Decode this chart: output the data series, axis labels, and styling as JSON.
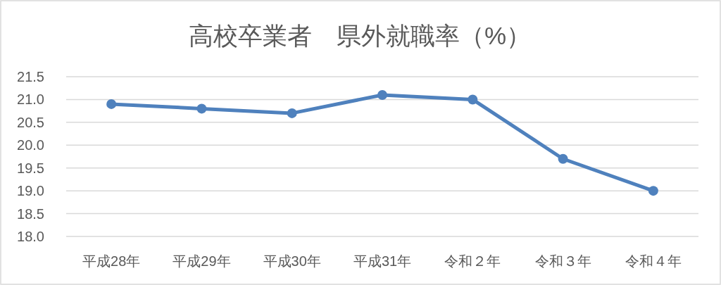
{
  "chart_data": {
    "type": "line",
    "title": "高校卒業者　県外就職率（%）",
    "categories": [
      "平成28年",
      "平成29年",
      "平成30年",
      "平成31年",
      "令和２年",
      "令和３年",
      "令和４年"
    ],
    "series": [
      {
        "color": "#4f81bd",
        "values": [
          20.9,
          20.8,
          20.7,
          21.1,
          21.0,
          19.7,
          19.0
        ]
      }
    ],
    "ylim": [
      18,
      21.5
    ],
    "yticks": [
      {
        "value": 18,
        "label": "18.0"
      },
      18.5,
      {
        "value": 19,
        "label": "19.0"
      },
      19.5,
      {
        "value": 20,
        "label": "20.0"
      },
      20.5,
      {
        "value": 21,
        "label": "21.0"
      },
      21.5
    ],
    "grid": "y",
    "marker": "circle",
    "line_style": "solid"
  }
}
